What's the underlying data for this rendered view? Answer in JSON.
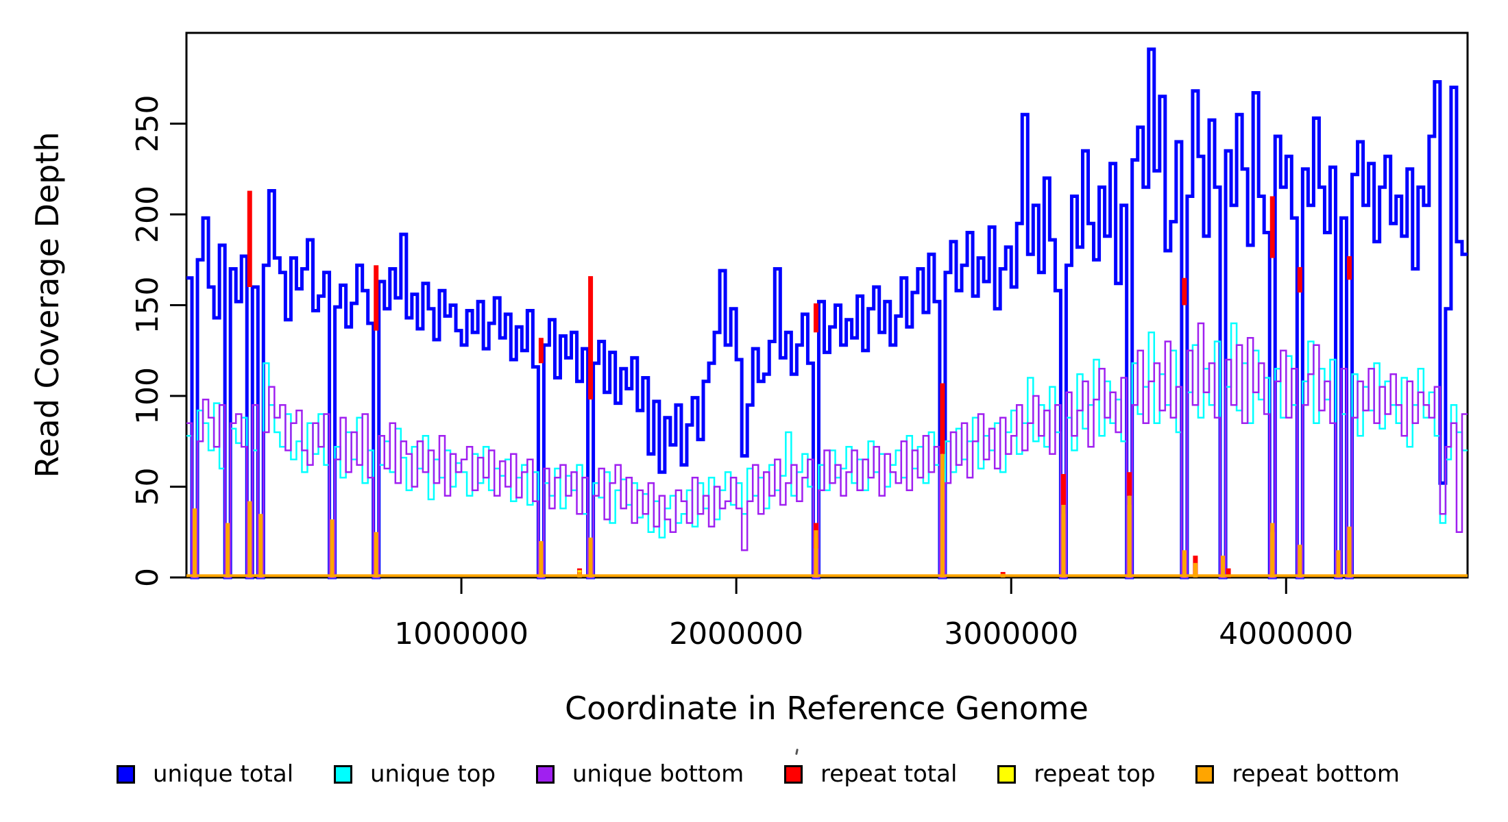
{
  "figure": {
    "background": "#ffffff",
    "axis_color": "#000000",
    "xlabel": "Coordinate in Reference Genome",
    "ylabel": "Read Coverage Depth"
  },
  "legend": {
    "items": [
      {
        "label": "unique total",
        "color": "#0000ff"
      },
      {
        "label": "unique top",
        "color": "#00ffff"
      },
      {
        "label": "unique bottom",
        "color": "#a020f0"
      },
      {
        "label": "repeat total",
        "color": "#ff0000"
      },
      {
        "label": "repeat top",
        "color": "#ffff00"
      },
      {
        "label": "repeat bottom",
        "color": "#ffa500"
      }
    ],
    "stray_tick_present": true
  },
  "chart_data": {
    "type": "line",
    "subtype": "step-coverage",
    "title": "",
    "xlabel": "Coordinate in Reference Genome",
    "ylabel": "Read Coverage Depth",
    "xlim": [
      0,
      4660000
    ],
    "ylim": [
      0,
      300
    ],
    "grid": false,
    "legend_position": "bottom",
    "x_ticks": [
      1000000,
      2000000,
      3000000,
      4000000
    ],
    "x_tick_labels": [
      "1000000",
      "2000000",
      "3000000",
      "4000000"
    ],
    "y_ticks": [
      0,
      50,
      100,
      150,
      200,
      250
    ],
    "y_tick_labels": [
      "0",
      "50",
      "100",
      "150",
      "200",
      "250"
    ],
    "bin_size": 20000,
    "series": [
      {
        "name": "unique total",
        "color": "#0000ff",
        "lw": 5,
        "values": [
          165,
          0,
          175,
          198,
          160,
          143,
          183,
          0,
          170,
          152,
          177,
          0,
          160,
          0,
          172,
          213,
          176,
          168,
          142,
          176,
          159,
          170,
          186,
          147,
          155,
          168,
          0,
          149,
          161,
          138,
          151,
          172,
          158,
          140,
          0,
          163,
          148,
          170,
          154,
          189,
          143,
          156,
          137,
          162,
          148,
          131,
          158,
          144,
          150,
          136,
          128,
          147,
          135,
          152,
          126,
          140,
          154,
          132,
          145,
          120,
          138,
          125,
          147,
          116,
          0,
          128,
          142,
          110,
          133,
          121,
          135,
          108,
          126,
          0,
          118,
          130,
          102,
          124,
          96,
          115,
          104,
          121,
          92,
          110,
          68,
          97,
          58,
          88,
          73,
          95,
          62,
          84,
          99,
          76,
          108,
          118,
          135,
          169,
          128,
          148,
          120,
          67,
          95,
          126,
          108,
          112,
          130,
          170,
          121,
          135,
          112,
          128,
          145,
          118,
          0,
          152,
          124,
          138,
          150,
          128,
          142,
          132,
          155,
          125,
          148,
          160,
          135,
          152,
          128,
          144,
          165,
          138,
          157,
          170,
          146,
          178,
          152,
          0,
          168,
          185,
          158,
          172,
          190,
          155,
          176,
          163,
          193,
          148,
          170,
          182,
          160,
          195,
          255,
          178,
          205,
          168,
          220,
          186,
          158,
          0,
          172,
          210,
          182,
          235,
          195,
          175,
          215,
          188,
          228,
          162,
          205,
          0,
          230,
          248,
          215,
          291,
          224,
          265,
          180,
          196,
          240,
          0,
          210,
          268,
          232,
          188,
          252,
          215,
          0,
          235,
          205,
          255,
          225,
          183,
          267,
          210,
          190,
          0,
          243,
          215,
          232,
          198,
          0,
          225,
          205,
          253,
          215,
          190,
          226,
          0,
          198,
          0,
          222,
          240,
          205,
          228,
          185,
          215,
          232,
          195,
          210,
          188,
          225,
          170,
          215,
          205,
          243,
          273,
          52,
          148,
          270,
          185,
          178
        ]
      },
      {
        "name": "unique top",
        "color": "#00ffff",
        "lw": 2.5,
        "values": [
          78,
          0,
          92,
          85,
          70,
          96,
          60,
          0,
          82,
          74,
          88,
          0,
          70,
          0,
          118,
          95,
          80,
          72,
          90,
          65,
          75,
          58,
          85,
          68,
          90,
          62,
          0,
          72,
          55,
          80,
          65,
          88,
          52,
          70,
          0,
          62,
          75,
          58,
          82,
          66,
          48,
          72,
          60,
          78,
          43,
          65,
          55,
          70,
          50,
          63,
          58,
          45,
          68,
          52,
          72,
          48,
          60,
          56,
          65,
          42,
          55,
          62,
          40,
          58,
          0,
          52,
          45,
          60,
          38,
          56,
          48,
          62,
          35,
          0,
          52,
          44,
          58,
          30,
          48,
          54,
          40,
          52,
          33,
          46,
          25,
          42,
          22,
          38,
          45,
          30,
          35,
          48,
          28,
          52,
          38,
          55,
          32,
          48,
          58,
          40,
          52,
          35,
          60,
          45,
          55,
          38,
          62,
          48,
          56,
          80,
          45,
          58,
          68,
          50,
          0,
          62,
          48,
          70,
          55,
          60,
          72,
          52,
          65,
          48,
          75,
          58,
          68,
          50,
          62,
          70,
          55,
          78,
          60,
          72,
          52,
          80,
          62,
          0,
          75,
          58,
          82,
          65,
          75,
          88,
          60,
          78,
          70,
          85,
          58,
          80,
          92,
          68,
          85,
          110,
          75,
          95,
          72,
          105,
          80,
          0,
          88,
          70,
          112,
          82,
          95,
          120,
          78,
          108,
          85,
          98,
          75,
          0,
          118,
          90,
          105,
          135,
          85,
          112,
          95,
          125,
          80,
          0,
          102,
          128,
          88,
          115,
          95,
          130,
          0,
          105,
          140,
          92,
          118,
          85,
          125,
          98,
          110,
          0,
          115,
          88,
          122,
          95,
          0,
          108,
          130,
          85,
          115,
          98,
          120,
          0,
          90,
          0,
          112,
          78,
          105,
          92,
          118,
          82,
          108,
          95,
          85,
          110,
          72,
          95,
          115,
          88,
          102,
          78,
          30,
          65,
          95,
          80,
          70
        ]
      },
      {
        "name": "unique bottom",
        "color": "#a020f0",
        "lw": 2.5,
        "values": [
          85,
          0,
          75,
          98,
          88,
          72,
          95,
          0,
          85,
          90,
          72,
          0,
          95,
          0,
          80,
          105,
          88,
          95,
          70,
          85,
          92,
          70,
          62,
          85,
          72,
          90,
          0,
          65,
          88,
          58,
          80,
          62,
          90,
          55,
          0,
          78,
          60,
          85,
          52,
          75,
          68,
          50,
          75,
          58,
          70,
          52,
          78,
          45,
          68,
          58,
          65,
          72,
          48,
          66,
          55,
          70,
          45,
          64,
          50,
          68,
          44,
          58,
          65,
          42,
          0,
          60,
          38,
          55,
          62,
          45,
          58,
          35,
          55,
          0,
          45,
          60,
          32,
          52,
          62,
          38,
          55,
          30,
          48,
          35,
          52,
          28,
          45,
          32,
          25,
          48,
          42,
          30,
          55,
          35,
          45,
          28,
          50,
          38,
          42,
          55,
          38,
          15,
          42,
          62,
          35,
          58,
          45,
          65,
          40,
          52,
          62,
          42,
          55,
          65,
          0,
          48,
          70,
          52,
          62,
          45,
          58,
          70,
          48,
          65,
          55,
          72,
          45,
          68,
          58,
          52,
          75,
          48,
          70,
          55,
          78,
          58,
          72,
          0,
          52,
          80,
          62,
          85,
          55,
          75,
          90,
          65,
          82,
          60,
          88,
          68,
          78,
          95,
          70,
          85,
          100,
          78,
          92,
          68,
          95,
          0,
          102,
          78,
          92,
          108,
          72,
          98,
          115,
          88,
          102,
          80,
          110,
          0,
          95,
          125,
          85,
          108,
          118,
          92,
          130,
          88,
          105,
          0,
          125,
          95,
          140,
          102,
          118,
          88,
          0,
          120,
          95,
          128,
          85,
          132,
          102,
          118,
          90,
          0,
          108,
          125,
          88,
          115,
          0,
          95,
          112,
          128,
          92,
          108,
          85,
          0,
          115,
          0,
          88,
          108,
          92,
          115,
          85,
          105,
          90,
          112,
          95,
          78,
          108,
          85,
          102,
          95,
          88,
          105,
          35,
          72,
          85,
          25,
          90
        ]
      }
    ],
    "spike_series": [
      {
        "name": "repeat total",
        "color": "#ff0000",
        "lw": 7,
        "segments": [
          [
            11,
            160,
            213
          ],
          [
            34,
            136,
            172
          ],
          [
            64,
            118,
            132
          ],
          [
            71,
            0,
            5
          ],
          [
            73,
            98,
            166
          ],
          [
            114,
            135,
            151
          ],
          [
            114,
            16,
            30
          ],
          [
            137,
            68,
            107
          ],
          [
            148,
            0,
            3
          ],
          [
            159,
            40,
            57
          ],
          [
            171,
            45,
            58
          ],
          [
            181,
            150,
            165
          ],
          [
            183,
            0,
            12
          ],
          [
            189,
            0,
            5
          ],
          [
            197,
            176,
            210
          ],
          [
            202,
            157,
            171
          ],
          [
            211,
            164,
            177
          ]
        ]
      },
      {
        "name": "repeat top",
        "color": "#ffff00",
        "lw": 6,
        "segments": [
          [
            71,
            0,
            4
          ],
          [
            114,
            0,
            22
          ],
          [
            137,
            0,
            60
          ],
          [
            159,
            0,
            35
          ],
          [
            171,
            0,
            40
          ],
          [
            183,
            0,
            7
          ],
          [
            197,
            0,
            25
          ],
          [
            211,
            0,
            22
          ]
        ]
      },
      {
        "name": "repeat bottom",
        "color": "#ffa500",
        "lw": 6,
        "baseline": 1,
        "segments": [
          [
            1,
            0,
            38
          ],
          [
            7,
            0,
            30
          ],
          [
            11,
            0,
            42
          ],
          [
            13,
            0,
            35
          ],
          [
            26,
            0,
            32
          ],
          [
            34,
            0,
            25
          ],
          [
            64,
            0,
            20
          ],
          [
            71,
            0,
            3
          ],
          [
            73,
            0,
            22
          ],
          [
            114,
            0,
            26
          ],
          [
            137,
            0,
            68
          ],
          [
            148,
            0,
            2
          ],
          [
            159,
            0,
            40
          ],
          [
            171,
            0,
            45
          ],
          [
            181,
            0,
            15
          ],
          [
            183,
            0,
            8
          ],
          [
            188,
            0,
            12
          ],
          [
            197,
            0,
            30
          ],
          [
            202,
            0,
            18
          ],
          [
            209,
            0,
            15
          ],
          [
            211,
            0,
            28
          ]
        ]
      }
    ]
  }
}
